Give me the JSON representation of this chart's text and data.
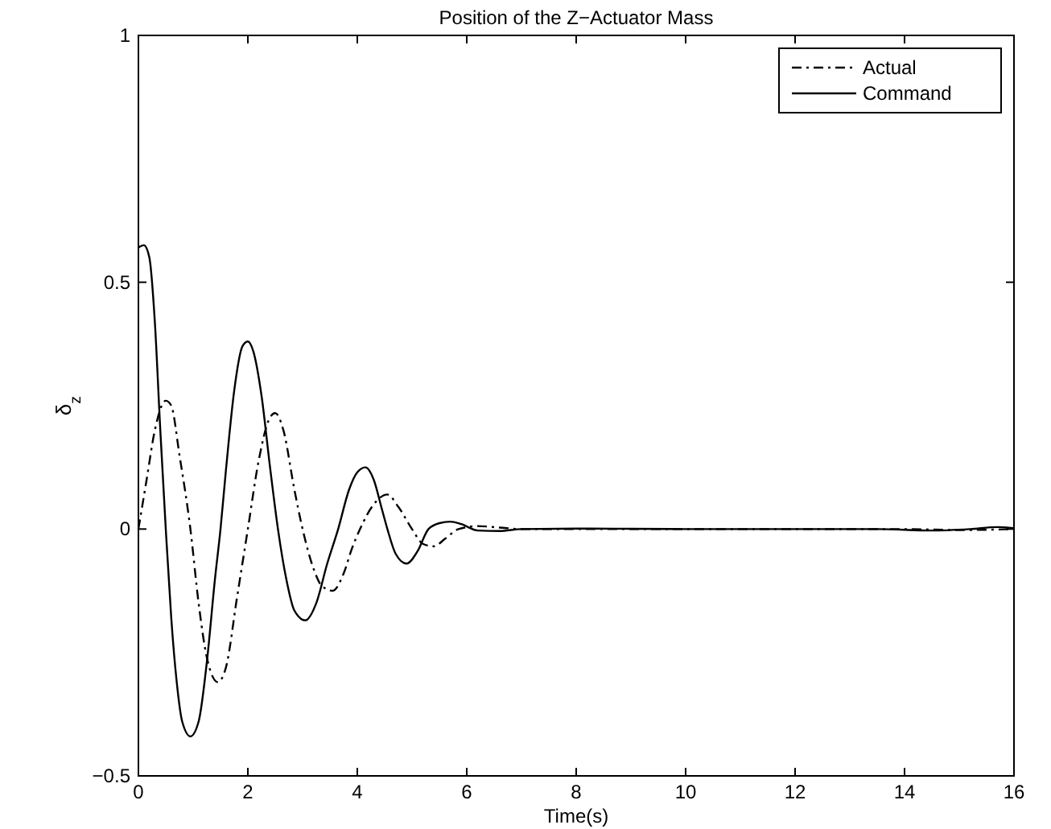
{
  "chart_data": {
    "type": "line",
    "title": "Position of the Z−Actuator Mass",
    "xlabel": "Time(s)",
    "ylabel": "δ$_{z}$",
    "xlim": [
      0,
      16
    ],
    "ylim": [
      -0.5,
      1
    ],
    "xticks": [
      0,
      2,
      4,
      6,
      8,
      10,
      12,
      14,
      16
    ],
    "yticks": [
      {
        "value": -0.5,
        "label": "−0.5"
      },
      0,
      0.5,
      1
    ],
    "grid": false,
    "legend": "top right",
    "marker": "none",
    "series": [
      {
        "name": "Actual",
        "color": "#000000",
        "line_style": "dashdot",
        "x": [
          0,
          0.15,
          0.3,
          0.5,
          0.6,
          0.75,
          0.95,
          1.1,
          1.25,
          1.45,
          1.6,
          1.8,
          2.0,
          2.2,
          2.4,
          2.5,
          2.65,
          2.85,
          3.0,
          3.2,
          3.35,
          3.55,
          3.75,
          3.9,
          4.05,
          4.3,
          4.55,
          4.75,
          5.0,
          5.2,
          5.4,
          5.6,
          5.85,
          6.2,
          6.6,
          7,
          8,
          10,
          12,
          14,
          15,
          16
        ],
        "values": [
          0,
          0.1,
          0.2,
          0.26,
          0.25,
          0.15,
          0,
          -0.15,
          -0.26,
          -0.31,
          -0.28,
          -0.14,
          0,
          0.14,
          0.225,
          0.235,
          0.2,
          0.08,
          0,
          -0.08,
          -0.115,
          -0.125,
          -0.09,
          -0.04,
          0,
          0.05,
          0.07,
          0.045,
          0,
          -0.03,
          -0.035,
          -0.02,
          0,
          0.006,
          0.003,
          0,
          0,
          0,
          0,
          0,
          -0.002,
          0
        ]
      },
      {
        "name": "Command",
        "color": "#000000",
        "line_style": "solid",
        "x": [
          0,
          0.1,
          0.2,
          0.3,
          0.4,
          0.5,
          0.6,
          0.7,
          0.8,
          0.95,
          1.1,
          1.25,
          1.4,
          1.5,
          1.6,
          1.75,
          1.9,
          2.0,
          2.1,
          2.25,
          2.4,
          2.55,
          2.7,
          2.85,
          3.05,
          3.25,
          3.45,
          3.65,
          3.85,
          4.0,
          4.15,
          4.3,
          4.45,
          4.55,
          4.7,
          4.9,
          5.1,
          5.3,
          5.5,
          5.7,
          5.9,
          6.2,
          6.6,
          7,
          8,
          10,
          12,
          13.5,
          14.5,
          15.2,
          15.7,
          16
        ],
        "values": [
          0.57,
          0.575,
          0.55,
          0.42,
          0.2,
          0,
          -0.18,
          -0.31,
          -0.39,
          -0.42,
          -0.39,
          -0.27,
          -0.1,
          0,
          0.12,
          0.28,
          0.37,
          0.38,
          0.36,
          0.27,
          0.13,
          0,
          -0.1,
          -0.165,
          -0.185,
          -0.15,
          -0.07,
          0,
          0.08,
          0.115,
          0.125,
          0.1,
          0.04,
          0,
          -0.05,
          -0.07,
          -0.045,
          0,
          0.012,
          0.015,
          0.01,
          -0.003,
          -0.004,
          0,
          0.001,
          0,
          0,
          0,
          -0.003,
          0,
          0.004,
          0.002
        ]
      }
    ]
  }
}
